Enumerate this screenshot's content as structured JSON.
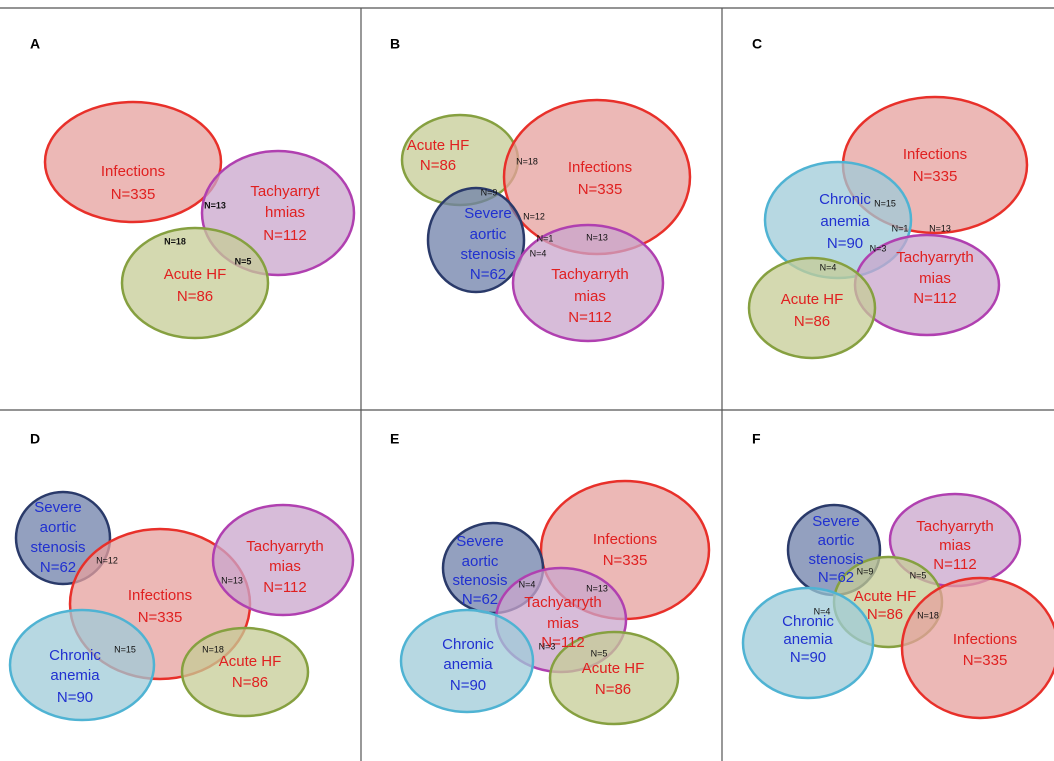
{
  "panels": [
    {
      "label": "A",
      "sets": [
        {
          "lines": [
            "Infections",
            "N=335"
          ]
        },
        {
          "lines": [
            "Tachyarryt",
            "hmias",
            "N=112"
          ]
        },
        {
          "lines": [
            "Acute HF",
            "N=86"
          ]
        }
      ],
      "overlaps": [
        "N=13",
        "N=18",
        "N=5"
      ]
    },
    {
      "label": "B",
      "sets": [
        {
          "lines": [
            "Acute HF",
            "N=86"
          ]
        },
        {
          "lines": [
            "Infections",
            "N=335"
          ]
        },
        {
          "lines": [
            "Severe",
            "aortic",
            "stenosis",
            "N=62"
          ]
        },
        {
          "lines": [
            "Tachyarryth",
            "mias",
            "N=112"
          ]
        }
      ],
      "overlaps": [
        "N=18",
        "N=9",
        "N=12",
        "N=1",
        "N=13",
        "N=4"
      ]
    },
    {
      "label": "C",
      "sets": [
        {
          "lines": [
            "Infections",
            "N=335"
          ]
        },
        {
          "lines": [
            "Chronic",
            "anemia",
            "N=90"
          ]
        },
        {
          "lines": [
            "Tachyarryth",
            "mias",
            "N=112"
          ]
        },
        {
          "lines": [
            "Acute HF",
            "N=86"
          ]
        }
      ],
      "overlaps": [
        "N=15",
        "N=1",
        "N=13",
        "N=3",
        "N=4"
      ]
    },
    {
      "label": "D",
      "sets": [
        {
          "lines": [
            "Severe",
            "aortic",
            "stenosis",
            "N=62"
          ]
        },
        {
          "lines": [
            "Infections",
            "N=335"
          ]
        },
        {
          "lines": [
            "Tachyarryth",
            "mias",
            "N=112"
          ]
        },
        {
          "lines": [
            "Chronic",
            "anemia",
            "N=90"
          ]
        },
        {
          "lines": [
            "Acute HF",
            "N=86"
          ]
        }
      ],
      "overlaps": [
        "N=12",
        "N=13",
        "N=15",
        "N=18"
      ]
    },
    {
      "label": "E",
      "sets": [
        {
          "lines": [
            "Infections",
            "N=335"
          ]
        },
        {
          "lines": [
            "Severe",
            "aortic",
            "stenosis",
            "N=62"
          ]
        },
        {
          "lines": [
            "Tachyarryth",
            "mias",
            "N=112"
          ]
        },
        {
          "lines": [
            "Chronic",
            "anemia",
            "N=90"
          ]
        },
        {
          "lines": [
            "Acute HF",
            "N=86"
          ]
        }
      ],
      "overlaps": [
        "N=4",
        "N=13",
        "N=3",
        "N=5"
      ]
    },
    {
      "label": "F",
      "sets": [
        {
          "lines": [
            "Severe",
            "aortic",
            "stenosis",
            "N=62"
          ]
        },
        {
          "lines": [
            "Tachyarryth",
            "mias",
            "N=112"
          ]
        },
        {
          "lines": [
            "Acute HF",
            "N=86"
          ]
        },
        {
          "lines": [
            "Chronic",
            "anemia",
            "N=90"
          ]
        },
        {
          "lines": [
            "Infections",
            "N=335"
          ]
        }
      ],
      "overlaps": [
        "N=9",
        "N=5",
        "N=4",
        "N=18"
      ]
    }
  ]
}
